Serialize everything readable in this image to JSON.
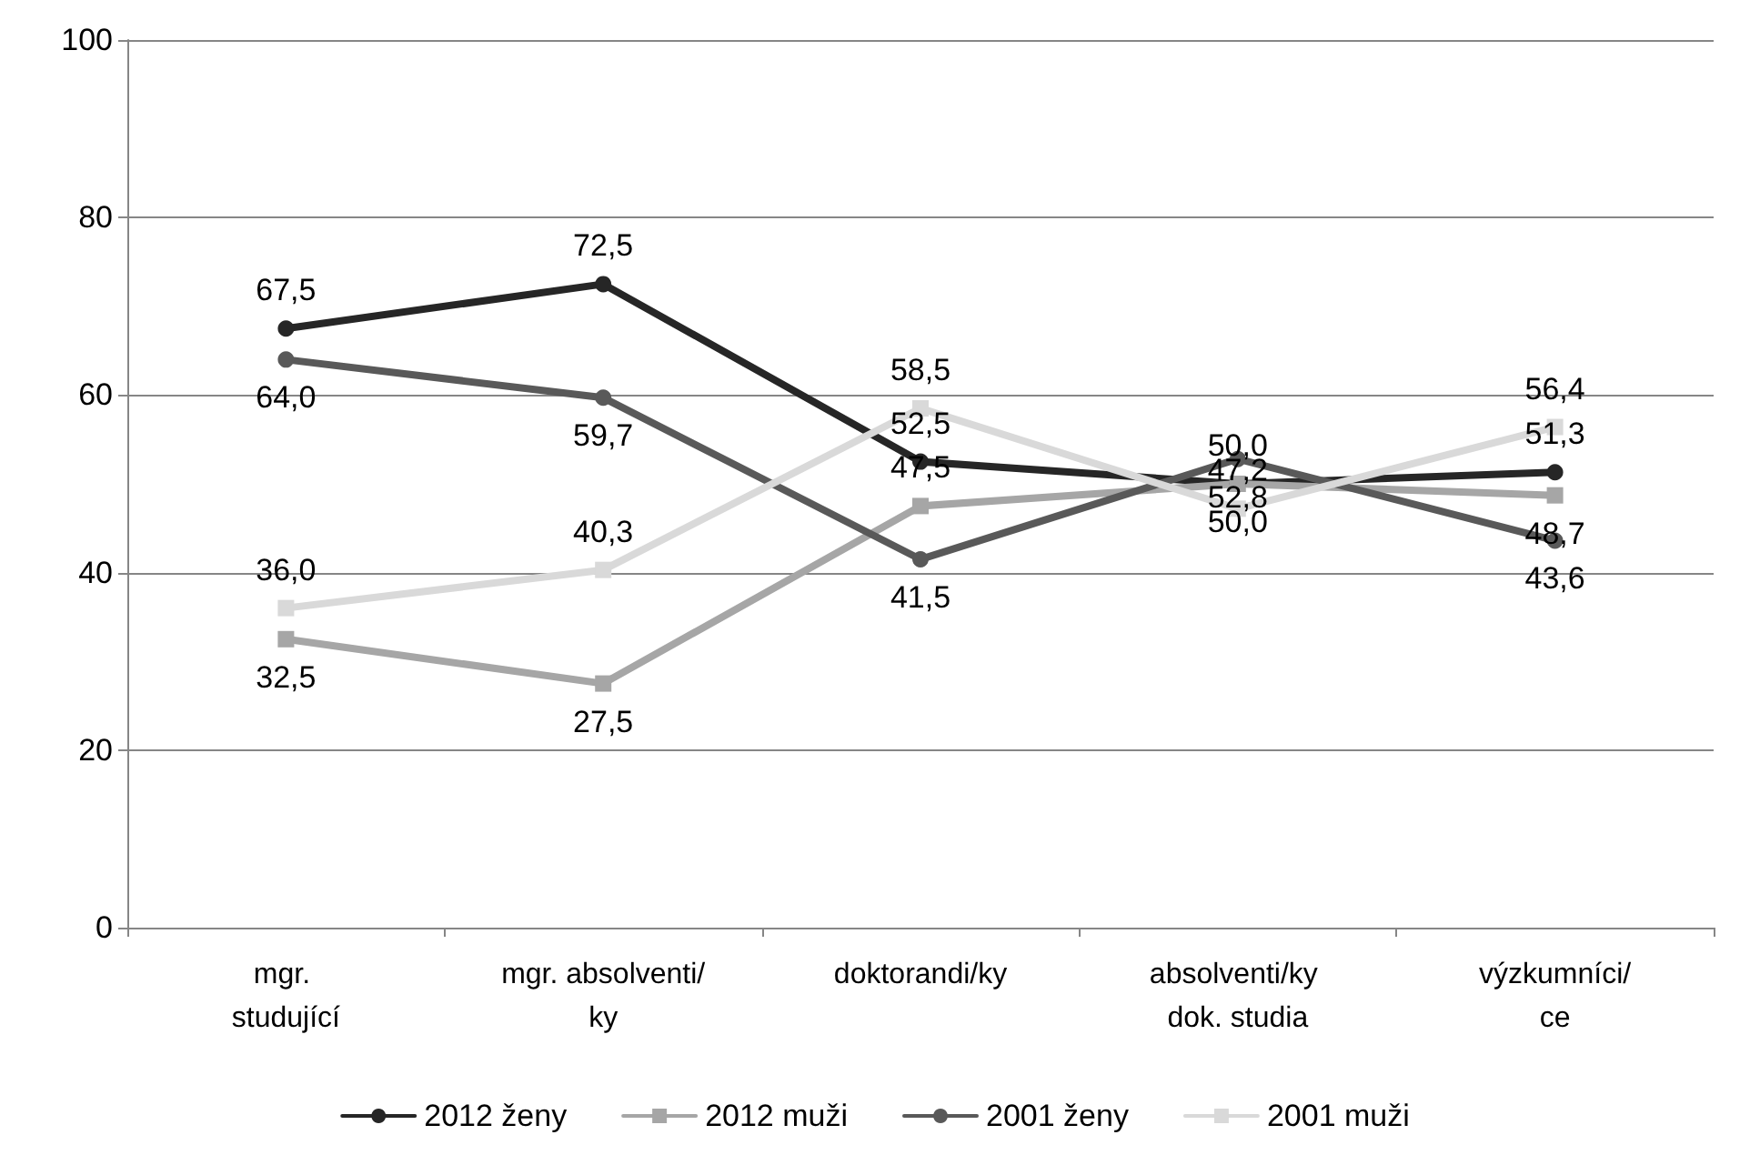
{
  "chart_data": {
    "type": "line",
    "categories": [
      "mgr. studující",
      "mgr. absolventi/ky",
      "doktorandi/ky",
      "absolventi/ky dok. studia",
      "výzkumníci/ce"
    ],
    "series": [
      {
        "name": "2012 ženy",
        "color": "#262626",
        "marker": "circle",
        "values": [
          67.5,
          72.5,
          52.5,
          50.0,
          51.3
        ],
        "value_labels": [
          "67,5",
          "72,5",
          "52,5",
          "50,0",
          "51,3"
        ]
      },
      {
        "name": "2012 muži",
        "color": "#a6a6a6",
        "marker": "square",
        "values": [
          32.5,
          27.5,
          47.5,
          50.0,
          48.7
        ],
        "value_labels": [
          "32,5",
          "27,5",
          "47,5",
          "50,0",
          "48,7"
        ]
      },
      {
        "name": "2001 ženy",
        "color": "#595959",
        "marker": "circle",
        "values": [
          64.0,
          59.7,
          41.5,
          52.8,
          43.6
        ],
        "value_labels": [
          "64,0",
          "59,7",
          "41,5",
          "52,8",
          "43,6"
        ]
      },
      {
        "name": "2001 muži",
        "color": "#d9d9d9",
        "marker": "square",
        "values": [
          36.0,
          40.3,
          58.5,
          47.2,
          56.4
        ],
        "value_labels": [
          "36,0",
          "40,3",
          "58,5",
          "47,2",
          "56,4"
        ]
      }
    ],
    "ylim": [
      0,
      100
    ],
    "yticks": [
      0,
      20,
      40,
      60,
      80,
      100
    ],
    "grid": "y",
    "legend": "bottom",
    "line_style": "solid"
  }
}
